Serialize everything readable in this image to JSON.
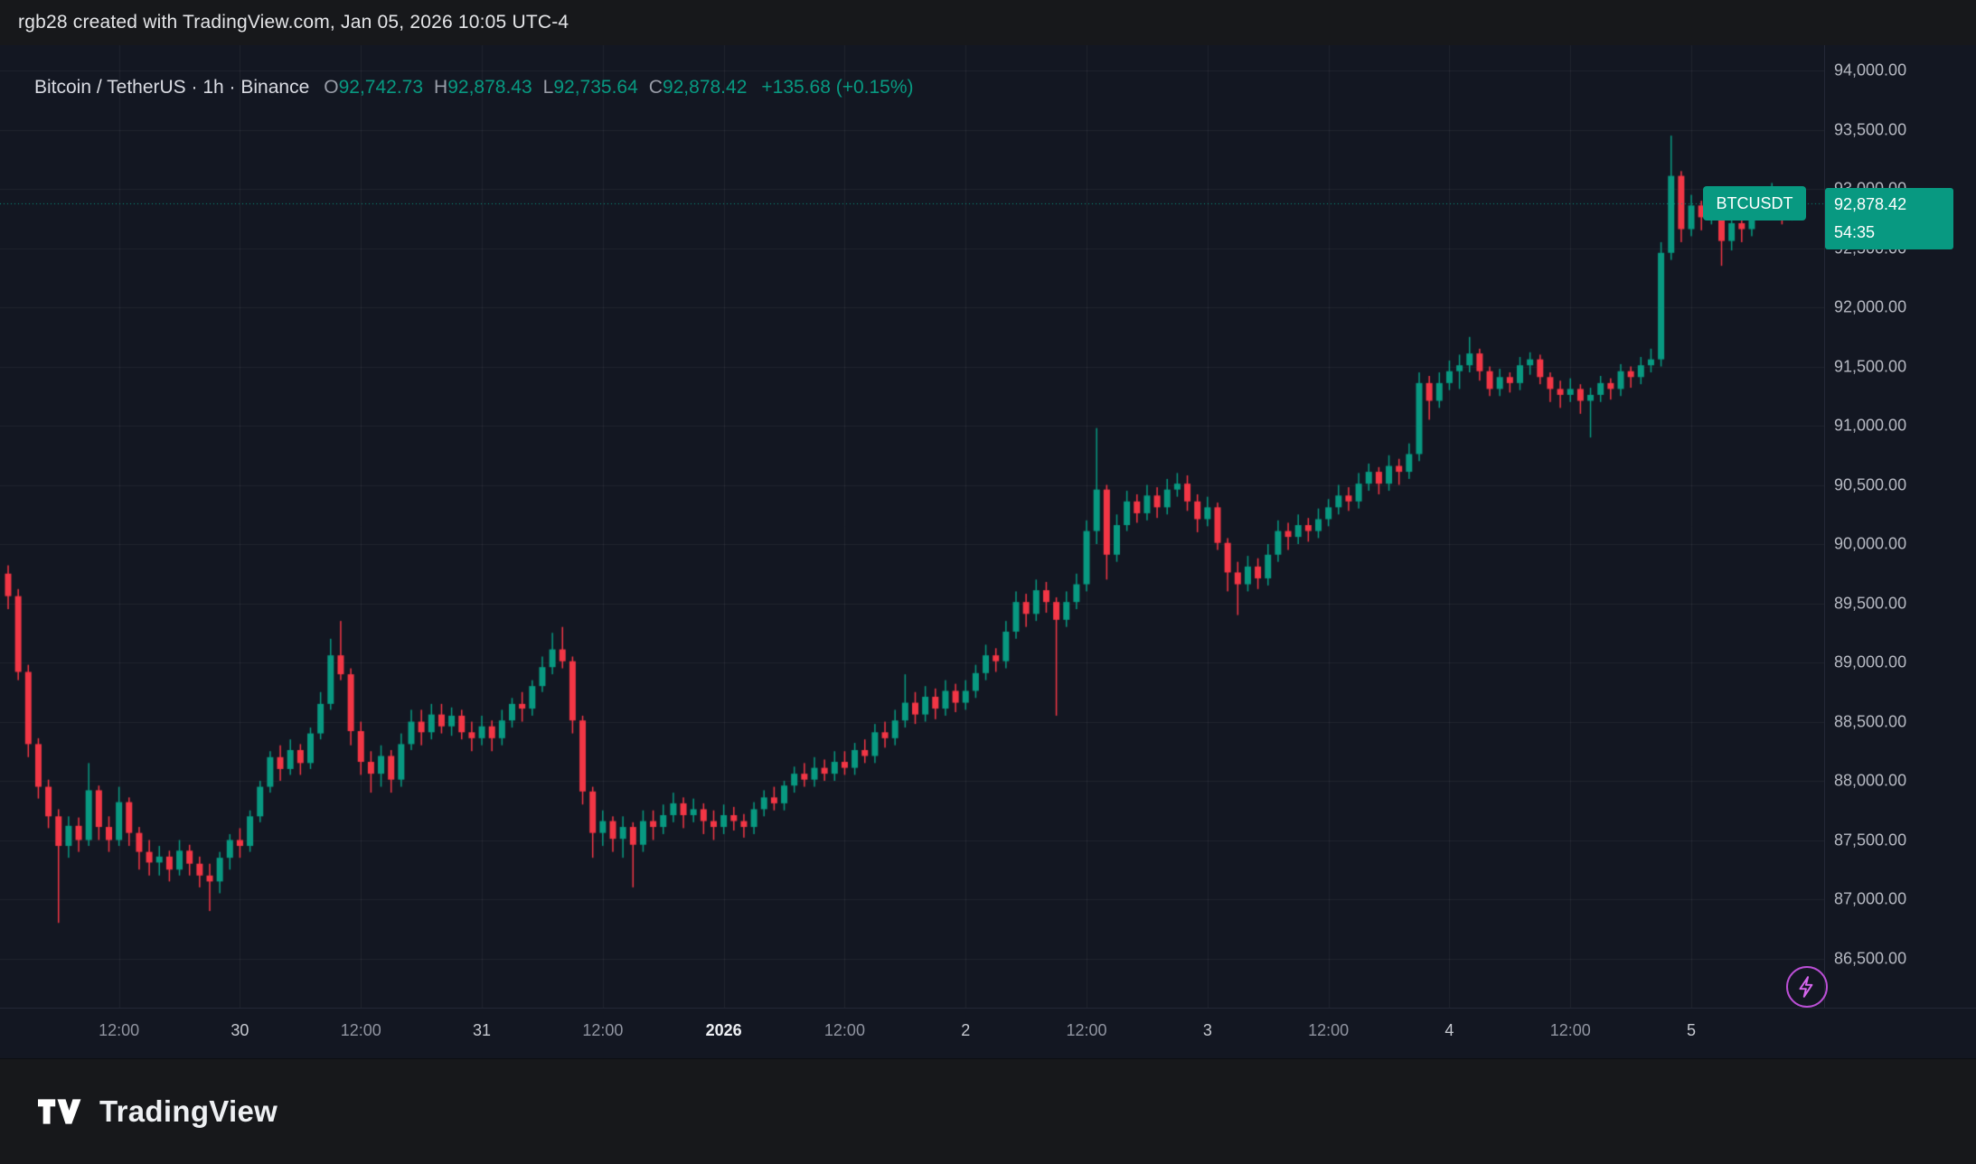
{
  "attribution": "rgb28 created with TradingView.com, Jan 05, 2026 10:05 UTC-4",
  "legend": {
    "title": "Bitcoin / TetherUS · 1h · Binance",
    "ohlc": [
      {
        "label": "O",
        "value": "92,742.73"
      },
      {
        "label": "H",
        "value": "92,878.43"
      },
      {
        "label": "L",
        "value": "92,735.64"
      },
      {
        "label": "C",
        "value": "92,878.42"
      }
    ],
    "change": "+135.68 (+0.15%)"
  },
  "price_line": {
    "symbol_tag": "BTCUSDT",
    "price": "92,878.42",
    "countdown": "54:35",
    "value": 92878.42
  },
  "footer": {
    "brand": "TradingView"
  },
  "colors": {
    "up": "#089981",
    "down": "#f23645",
    "accent": "#089981",
    "bg_chart": "#131722",
    "bg_outer": "#17181b",
    "grid": "rgba(255,255,255,0.055)",
    "flash": "#d766ef"
  },
  "chart_data": {
    "type": "candlestick",
    "title": "Bitcoin / TetherUS · 1h · Binance",
    "symbol": "BTCUSDT",
    "exchange": "Binance",
    "interval": "1h",
    "x_start": "Dec 29, 2025 01:00",
    "grid": true,
    "legend_position": "top-left",
    "y_axis": {
      "max": 94000,
      "step": 500,
      "min": 86500,
      "ylim": [
        86100,
        94600
      ],
      "labels": [
        "94,000.00",
        "93,500.00",
        "93,000.00",
        "92,500.00",
        "92,000.00",
        "91,500.00",
        "91,000.00",
        "90,500.00",
        "90,000.00",
        "89,500.00",
        "89,000.00",
        "88,500.00",
        "88,000.00",
        "87,500.00",
        "87,000.00",
        "86,500.00"
      ]
    },
    "x_ticks": [
      {
        "index": 11,
        "label": "12:00",
        "style": "minor"
      },
      {
        "index": 23,
        "label": "30",
        "style": "major"
      },
      {
        "index": 35,
        "label": "12:00",
        "style": "minor"
      },
      {
        "index": 47,
        "label": "31",
        "style": "major"
      },
      {
        "index": 59,
        "label": "12:00",
        "style": "minor"
      },
      {
        "index": 71,
        "label": "2026",
        "style": "year"
      },
      {
        "index": 83,
        "label": "12:00",
        "style": "minor"
      },
      {
        "index": 95,
        "label": "2",
        "style": "major"
      },
      {
        "index": 107,
        "label": "12:00",
        "style": "minor"
      },
      {
        "index": 119,
        "label": "3",
        "style": "major"
      },
      {
        "index": 131,
        "label": "12:00",
        "style": "minor"
      },
      {
        "index": 143,
        "label": "4",
        "style": "major"
      },
      {
        "index": 155,
        "label": "12:00",
        "style": "minor"
      },
      {
        "index": 167,
        "label": "5",
        "style": "major"
      }
    ],
    "ohlc_format": "[open, high, low, close]",
    "ohlc": [
      [
        89750,
        89820,
        89450,
        89560
      ],
      [
        89560,
        89620,
        88850,
        88920
      ],
      [
        88920,
        88980,
        88200,
        88310
      ],
      [
        88310,
        88360,
        87850,
        87950
      ],
      [
        87950,
        88010,
        87600,
        87700
      ],
      [
        87700,
        87760,
        86800,
        87450
      ],
      [
        87450,
        87700,
        87350,
        87620
      ],
      [
        87620,
        87690,
        87400,
        87500
      ],
      [
        87500,
        88150,
        87450,
        87920
      ],
      [
        87920,
        87960,
        87500,
        87610
      ],
      [
        87610,
        87700,
        87400,
        87500
      ],
      [
        87500,
        87950,
        87450,
        87820
      ],
      [
        87820,
        87860,
        87450,
        87560
      ],
      [
        87560,
        87610,
        87250,
        87400
      ],
      [
        87400,
        87500,
        87200,
        87310
      ],
      [
        87310,
        87450,
        87200,
        87360
      ],
      [
        87360,
        87410,
        87150,
        87250
      ],
      [
        87250,
        87500,
        87200,
        87410
      ],
      [
        87410,
        87460,
        87200,
        87300
      ],
      [
        87300,
        87360,
        87100,
        87200
      ],
      [
        87200,
        87300,
        86900,
        87150
      ],
      [
        87150,
        87400,
        87050,
        87350
      ],
      [
        87350,
        87550,
        87250,
        87500
      ],
      [
        87500,
        87600,
        87350,
        87450
      ],
      [
        87450,
        87750,
        87400,
        87700
      ],
      [
        87700,
        88000,
        87650,
        87950
      ],
      [
        87950,
        88250,
        87900,
        88200
      ],
      [
        88200,
        88300,
        88000,
        88100
      ],
      [
        88100,
        88350,
        88050,
        88260
      ],
      [
        88260,
        88310,
        88050,
        88150
      ],
      [
        88150,
        88450,
        88100,
        88400
      ],
      [
        88400,
        88750,
        88350,
        88650
      ],
      [
        88650,
        89200,
        88600,
        89060
      ],
      [
        89060,
        89350,
        88850,
        88900
      ],
      [
        88900,
        88950,
        88300,
        88420
      ],
      [
        88420,
        88500,
        88050,
        88160
      ],
      [
        88160,
        88250,
        87900,
        88060
      ],
      [
        88060,
        88300,
        87950,
        88210
      ],
      [
        88210,
        88260,
        87900,
        88010
      ],
      [
        88010,
        88400,
        87950,
        88310
      ],
      [
        88310,
        88600,
        88260,
        88500
      ],
      [
        88500,
        88600,
        88300,
        88410
      ],
      [
        88410,
        88650,
        88350,
        88560
      ],
      [
        88560,
        88650,
        88400,
        88460
      ],
      [
        88460,
        88620,
        88380,
        88550
      ],
      [
        88550,
        88600,
        88350,
        88410
      ],
      [
        88410,
        88500,
        88250,
        88360
      ],
      [
        88360,
        88550,
        88300,
        88460
      ],
      [
        88460,
        88510,
        88250,
        88360
      ],
      [
        88360,
        88600,
        88300,
        88510
      ],
      [
        88510,
        88700,
        88450,
        88650
      ],
      [
        88650,
        88750,
        88500,
        88610
      ],
      [
        88610,
        88850,
        88550,
        88800
      ],
      [
        88800,
        89050,
        88750,
        88960
      ],
      [
        88960,
        89250,
        88900,
        89110
      ],
      [
        89110,
        89300,
        88950,
        89010
      ],
      [
        89010,
        89050,
        88400,
        88510
      ],
      [
        88510,
        88550,
        87800,
        87910
      ],
      [
        87910,
        87950,
        87350,
        87560
      ],
      [
        87560,
        87750,
        87450,
        87660
      ],
      [
        87660,
        87700,
        87400,
        87510
      ],
      [
        87510,
        87700,
        87350,
        87610
      ],
      [
        87610,
        87650,
        87100,
        87460
      ],
      [
        87460,
        87750,
        87400,
        87660
      ],
      [
        87660,
        87750,
        87500,
        87610
      ],
      [
        87610,
        87800,
        87550,
        87710
      ],
      [
        87710,
        87900,
        87650,
        87810
      ],
      [
        87810,
        87860,
        87600,
        87710
      ],
      [
        87710,
        87850,
        87650,
        87760
      ],
      [
        87760,
        87810,
        87550,
        87660
      ],
      [
        87660,
        87750,
        87500,
        87610
      ],
      [
        87610,
        87800,
        87550,
        87710
      ],
      [
        87710,
        87780,
        87580,
        87660
      ],
      [
        87660,
        87720,
        87520,
        87610
      ],
      [
        87610,
        87820,
        87550,
        87760
      ],
      [
        87760,
        87920,
        87700,
        87860
      ],
      [
        87860,
        87950,
        87750,
        87810
      ],
      [
        87810,
        88000,
        87750,
        87960
      ],
      [
        87960,
        88120,
        87900,
        88060
      ],
      [
        88060,
        88150,
        87950,
        88010
      ],
      [
        88010,
        88200,
        87950,
        88110
      ],
      [
        88110,
        88180,
        88000,
        88060
      ],
      [
        88060,
        88250,
        88000,
        88160
      ],
      [
        88160,
        88250,
        88050,
        88110
      ],
      [
        88110,
        88320,
        88050,
        88260
      ],
      [
        88260,
        88350,
        88150,
        88210
      ],
      [
        88210,
        88480,
        88150,
        88410
      ],
      [
        88410,
        88500,
        88280,
        88360
      ],
      [
        88360,
        88600,
        88300,
        88510
      ],
      [
        88510,
        88900,
        88450,
        88660
      ],
      [
        88660,
        88750,
        88480,
        88560
      ],
      [
        88560,
        88800,
        88500,
        88710
      ],
      [
        88710,
        88780,
        88520,
        88610
      ],
      [
        88610,
        88850,
        88550,
        88760
      ],
      [
        88760,
        88820,
        88580,
        88660
      ],
      [
        88660,
        88850,
        88600,
        88760
      ],
      [
        88760,
        88980,
        88700,
        88910
      ],
      [
        88910,
        89150,
        88850,
        89060
      ],
      [
        89060,
        89120,
        88920,
        89010
      ],
      [
        89010,
        89350,
        88950,
        89260
      ],
      [
        89260,
        89600,
        89200,
        89510
      ],
      [
        89510,
        89580,
        89300,
        89410
      ],
      [
        89410,
        89700,
        89350,
        89610
      ],
      [
        89610,
        89680,
        89420,
        89510
      ],
      [
        89510,
        89550,
        88550,
        89360
      ],
      [
        89360,
        89600,
        89300,
        89510
      ],
      [
        89510,
        89750,
        89450,
        89660
      ],
      [
        89660,
        90200,
        89600,
        90110
      ],
      [
        90110,
        90980,
        90000,
        90460
      ],
      [
        90460,
        90500,
        89700,
        89910
      ],
      [
        89910,
        90250,
        89850,
        90160
      ],
      [
        90160,
        90450,
        90110,
        90360
      ],
      [
        90360,
        90420,
        90180,
        90260
      ],
      [
        90260,
        90500,
        90200,
        90410
      ],
      [
        90410,
        90480,
        90220,
        90310
      ],
      [
        90310,
        90550,
        90250,
        90460
      ],
      [
        90460,
        90600,
        90400,
        90510
      ],
      [
        90510,
        90580,
        90280,
        90360
      ],
      [
        90360,
        90420,
        90100,
        90210
      ],
      [
        90210,
        90400,
        90150,
        90310
      ],
      [
        90310,
        90350,
        89950,
        90010
      ],
      [
        90010,
        90050,
        89600,
        89760
      ],
      [
        89760,
        89850,
        89400,
        89660
      ],
      [
        89660,
        89900,
        89600,
        89810
      ],
      [
        89810,
        89880,
        89620,
        89710
      ],
      [
        89710,
        90000,
        89650,
        89910
      ],
      [
        89910,
        90200,
        89850,
        90110
      ],
      [
        90110,
        90180,
        89950,
        90060
      ],
      [
        90060,
        90250,
        90000,
        90160
      ],
      [
        90160,
        90220,
        90020,
        90110
      ],
      [
        90110,
        90300,
        90050,
        90210
      ],
      [
        90210,
        90380,
        90150,
        90310
      ],
      [
        90310,
        90500,
        90250,
        90410
      ],
      [
        90410,
        90480,
        90280,
        90360
      ],
      [
        90360,
        90600,
        90300,
        90510
      ],
      [
        90510,
        90680,
        90450,
        90610
      ],
      [
        90610,
        90650,
        90420,
        90510
      ],
      [
        90510,
        90750,
        90450,
        90660
      ],
      [
        90660,
        90720,
        90500,
        90610
      ],
      [
        90610,
        90850,
        90550,
        90760
      ],
      [
        90760,
        91450,
        90700,
        91360
      ],
      [
        91360,
        91420,
        91050,
        91210
      ],
      [
        91210,
        91450,
        91150,
        91360
      ],
      [
        91360,
        91550,
        91300,
        91460
      ],
      [
        91460,
        91600,
        91310,
        91510
      ],
      [
        91510,
        91750,
        91450,
        91610
      ],
      [
        91610,
        91650,
        91380,
        91460
      ],
      [
        91460,
        91500,
        91250,
        91310
      ],
      [
        91310,
        91480,
        91250,
        91410
      ],
      [
        91410,
        91450,
        91280,
        91360
      ],
      [
        91360,
        91580,
        91300,
        91510
      ],
      [
        91510,
        91620,
        91430,
        91560
      ],
      [
        91560,
        91600,
        91350,
        91410
      ],
      [
        91410,
        91450,
        91200,
        91310
      ],
      [
        91310,
        91380,
        91150,
        91260
      ],
      [
        91260,
        91400,
        91200,
        91310
      ],
      [
        91310,
        91350,
        91100,
        91210
      ],
      [
        91210,
        91320,
        90900,
        91260
      ],
      [
        91260,
        91420,
        91200,
        91360
      ],
      [
        91360,
        91400,
        91220,
        91310
      ],
      [
        91310,
        91520,
        91250,
        91460
      ],
      [
        91460,
        91500,
        91320,
        91410
      ],
      [
        91410,
        91580,
        91350,
        91510
      ],
      [
        91510,
        91650,
        91450,
        91560
      ],
      [
        91560,
        92550,
        91500,
        92460
      ],
      [
        92460,
        93450,
        92400,
        93110
      ],
      [
        93110,
        93150,
        92550,
        92660
      ],
      [
        92660,
        92950,
        92600,
        92860
      ],
      [
        92860,
        92900,
        92650,
        92760
      ],
      [
        92760,
        93000,
        92700,
        92910
      ],
      [
        92910,
        92950,
        92350,
        92560
      ],
      [
        92560,
        92780,
        92480,
        92710
      ],
      [
        92710,
        92760,
        92550,
        92660
      ],
      [
        92660,
        92880,
        92600,
        92810
      ],
      [
        92810,
        93000,
        92750,
        92910
      ],
      [
        92910,
        93050,
        92850,
        92960
      ],
      [
        92960,
        93000,
        92700,
        92760
      ],
      [
        92742.73,
        92878.43,
        92735.64,
        92878.42
      ]
    ]
  }
}
